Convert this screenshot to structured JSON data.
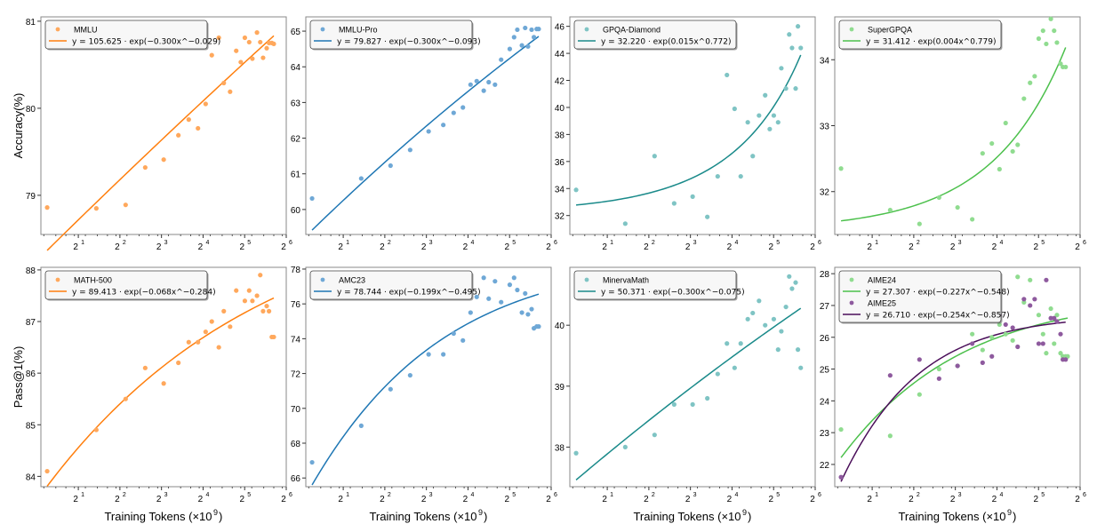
{
  "chart_data": [
    {
      "type": "scatter",
      "title": "",
      "xlabel": "",
      "ylabel": "Accuracy(%)",
      "xscale": "log2",
      "xticks": [
        "2^1",
        "2^2",
        "2^3",
        "2^4",
        "2^5",
        "2^6"
      ],
      "ylim": [
        78.55,
        81.05
      ],
      "yticks": [
        79,
        80,
        81
      ],
      "legend": "top-left",
      "series": [
        {
          "name": "MMLU",
          "color": "#ffa85c",
          "fit_color": "#ff7f0e",
          "fit_label": "y = 105.625 · exp(−0.300x^−0.029)",
          "fit": {
            "a": 105.625,
            "b": -0.3,
            "c": -0.029
          },
          "x": [
            1.19,
            2.7,
            4.4,
            6.1,
            8.3,
            10.6,
            12.6,
            14.7,
            16.7,
            18.5,
            20.8,
            22.6,
            25.1,
            27.8,
            30.0,
            32.1,
            34.5,
            36.4,
            39.3,
            41.5,
            43.5,
            46.2,
            48.0,
            50.3,
            52.0
          ],
          "y": [
            78.86,
            78.85,
            78.89,
            79.32,
            79.41,
            79.69,
            79.87,
            79.77,
            80.05,
            80.61,
            80.81,
            80.29,
            80.19,
            80.66,
            80.53,
            80.81,
            80.76,
            80.57,
            80.87,
            80.76,
            80.58,
            80.69,
            80.75,
            80.75,
            80.74
          ]
        }
      ]
    },
    {
      "type": "scatter",
      "title": "",
      "xlabel": "",
      "ylabel": "",
      "xscale": "log2",
      "xticks": [
        "2^1",
        "2^2",
        "2^3",
        "2^4",
        "2^5",
        "2^6"
      ],
      "ylim": [
        59.3,
        65.4
      ],
      "yticks": [
        60,
        61,
        62,
        63,
        64,
        65
      ],
      "legend": "top-left",
      "series": [
        {
          "name": "MMLU-Pro",
          "color": "#6fa8d6",
          "fit_color": "#1f77b4",
          "fit_label": "y = 79.827 · exp(−0.300x^−0.093)",
          "fit": {
            "a": 79.827,
            "b": -0.3,
            "c": -0.093
          },
          "x": [
            1.19,
            2.7,
            4.4,
            6.1,
            8.3,
            10.6,
            12.6,
            14.7,
            16.7,
            18.5,
            20.8,
            22.6,
            25.1,
            27.8,
            32.1,
            34.5,
            36.4,
            39.3,
            41.5,
            43.5,
            46.2,
            48.0,
            50.3,
            52.0
          ],
          "y": [
            60.31,
            60.87,
            61.23,
            61.67,
            62.19,
            62.37,
            62.71,
            62.86,
            63.5,
            63.6,
            63.33,
            63.57,
            63.5,
            64.2,
            64.5,
            64.83,
            65.04,
            64.6,
            65.09,
            64.57,
            65.04,
            64.83,
            65.06,
            65.06
          ]
        }
      ]
    },
    {
      "type": "scatter",
      "title": "",
      "xlabel": "",
      "ylabel": "",
      "xscale": "log2",
      "xticks": [
        "2^1",
        "2^2",
        "2^3",
        "2^4",
        "2^5",
        "2^6"
      ],
      "ylim": [
        30.6,
        46.7
      ],
      "yticks": [
        32,
        34,
        36,
        38,
        40,
        42,
        44,
        46
      ],
      "legend": "top-left",
      "series": [
        {
          "name": "GPQA-Diamond",
          "color": "#7fc4c4",
          "fit_color": "#1a8a8a",
          "fit_label": "y = 32.220 · exp(0.015x^0.772)",
          "fit": {
            "a": 32.22,
            "b": 0.015,
            "c": 0.772
          },
          "x": [
            1.19,
            2.7,
            4.4,
            6.1,
            8.3,
            10.6,
            12.6,
            14.7,
            16.7,
            18.5,
            20.8,
            22.6,
            25.1,
            27.8,
            30.0,
            32.1,
            34.5,
            36.4,
            39.3,
            41.5,
            43.5,
            46.2,
            48.0,
            50.3
          ],
          "y": [
            33.9,
            31.4,
            36.4,
            32.9,
            33.4,
            31.9,
            34.9,
            42.4,
            39.9,
            34.9,
            38.9,
            36.4,
            39.4,
            40.9,
            38.4,
            39.4,
            38.9,
            42.9,
            41.4,
            45.4,
            44.4,
            41.4,
            46.0,
            44.4
          ]
        }
      ]
    },
    {
      "type": "scatter",
      "title": "",
      "xlabel": "",
      "ylabel": "",
      "xscale": "log2",
      "xticks": [
        "2^1",
        "2^2",
        "2^3",
        "2^4",
        "2^5",
        "2^6"
      ],
      "ylim": [
        31.35,
        34.65
      ],
      "yticks": [
        32,
        33,
        34
      ],
      "legend": "top-left",
      "series": [
        {
          "name": "SuperGPQA",
          "color": "#90dc90",
          "fit_color": "#4cc04c",
          "fit_label": "y = 31.412 · exp(0.004x^0.779)",
          "fit": {
            "a": 31.412,
            "b": 0.004,
            "c": 0.779
          },
          "x": [
            1.19,
            2.7,
            4.4,
            6.1,
            8.3,
            10.6,
            12.6,
            14.7,
            16.7,
            18.5,
            20.8,
            22.6,
            25.1,
            27.8,
            30.0,
            32.1,
            34.5,
            36.4,
            39.3,
            41.5,
            43.5,
            46.2,
            48.0,
            50.3
          ],
          "y": [
            32.35,
            31.72,
            31.51,
            31.91,
            31.76,
            31.58,
            32.58,
            32.73,
            32.34,
            33.04,
            32.61,
            32.71,
            33.41,
            33.65,
            33.75,
            34.32,
            34.44,
            34.24,
            34.62,
            34.44,
            34.26,
            33.94,
            33.89,
            33.89
          ]
        }
      ]
    },
    {
      "type": "scatter",
      "title": "",
      "xlabel": "Training Tokens (×10⁹)",
      "ylabel": "Pass@1(%)",
      "xscale": "log2",
      "xticks": [
        "2^1",
        "2^2",
        "2^3",
        "2^4",
        "2^5",
        "2^6"
      ],
      "ylim": [
        83.8,
        88.05
      ],
      "yticks": [
        84,
        85,
        86,
        87,
        88
      ],
      "legend": "top-left",
      "series": [
        {
          "name": "MATH-500",
          "color": "#ffa85c",
          "fit_color": "#ff7f0e",
          "fit_label": "y = 89.413 · exp(−0.068x^−0.284)",
          "fit": {
            "a": 89.413,
            "b": -0.068,
            "c": -0.284
          },
          "x": [
            1.19,
            2.7,
            4.4,
            6.1,
            8.3,
            10.6,
            12.6,
            14.7,
            16.7,
            18.5,
            20.8,
            22.6,
            25.1,
            27.8,
            32.1,
            34.5,
            36.4,
            39.3,
            41.5,
            43.5,
            46.2,
            48.0,
            50.3,
            52.0
          ],
          "y": [
            84.1,
            84.9,
            85.5,
            86.1,
            85.8,
            86.2,
            86.6,
            86.6,
            86.8,
            87.0,
            86.5,
            87.2,
            86.9,
            87.6,
            87.4,
            87.6,
            87.4,
            87.5,
            87.9,
            87.2,
            87.3,
            87.2,
            86.7,
            86.7
          ]
        }
      ]
    },
    {
      "type": "scatter",
      "title": "",
      "xlabel": "Training Tokens (×10⁹)",
      "ylabel": "",
      "xscale": "log2",
      "xticks": [
        "2^1",
        "2^2",
        "2^3",
        "2^4",
        "2^5",
        "2^6"
      ],
      "ylim": [
        65.5,
        78.1
      ],
      "yticks": [
        66,
        68,
        70,
        72,
        74,
        76,
        78
      ],
      "legend": "top-left",
      "series": [
        {
          "name": "AMC23",
          "color": "#6fa8d6",
          "fit_color": "#1f77b4",
          "fit_label": "y = 78.744 · exp(−0.199x^−0.495)",
          "fit": {
            "a": 78.744,
            "b": -0.199,
            "c": -0.495
          },
          "x": [
            1.19,
            2.7,
            4.4,
            6.1,
            8.3,
            10.6,
            12.6,
            14.7,
            16.7,
            18.5,
            20.8,
            22.6,
            25.1,
            27.8,
            32.1,
            34.5,
            36.4,
            39.3,
            41.5,
            43.5,
            46.2,
            48.0,
            50.3,
            52.0
          ],
          "y": [
            66.9,
            69.0,
            71.1,
            71.9,
            73.1,
            73.1,
            74.3,
            73.9,
            75.5,
            76.4,
            77.5,
            76.3,
            77.3,
            76.1,
            77.1,
            77.5,
            76.8,
            75.5,
            76.6,
            75.4,
            75.7,
            74.6,
            74.7,
            74.7
          ]
        }
      ]
    },
    {
      "type": "scatter",
      "title": "",
      "xlabel": "Training Tokens (×10⁹)",
      "ylabel": "",
      "xscale": "log2",
      "xticks": [
        "2^1",
        "2^2",
        "2^3",
        "2^4",
        "2^5",
        "2^6"
      ],
      "ylim": [
        37.35,
        40.95
      ],
      "yticks": [
        38,
        39,
        40
      ],
      "legend": "top-left",
      "series": [
        {
          "name": "MinervaMath",
          "color": "#7fc4c4",
          "fit_color": "#1a8a8a",
          "fit_label": "y = 50.371 · exp(−0.300x^−0.075)",
          "fit": {
            "a": 50.371,
            "b": -0.3,
            "c": -0.075
          },
          "x": [
            1.19,
            2.7,
            4.4,
            6.1,
            8.3,
            10.6,
            12.6,
            14.7,
            16.7,
            18.5,
            20.8,
            22.6,
            25.1,
            27.8,
            32.1,
            34.5,
            36.4,
            39.3,
            41.5,
            43.5,
            46.2,
            48.0,
            50.3
          ],
          "y": [
            37.9,
            38.0,
            38.2,
            38.7,
            38.7,
            38.8,
            39.2,
            39.7,
            39.3,
            39.7,
            40.1,
            40.2,
            40.4,
            40.0,
            40.1,
            39.6,
            39.9,
            40.3,
            40.8,
            40.6,
            40.7,
            39.6,
            39.3
          ]
        }
      ]
    },
    {
      "type": "scatter",
      "title": "",
      "xlabel": "Training Tokens (×10⁹)",
      "ylabel": "",
      "xscale": "log2",
      "xticks": [
        "2^1",
        "2^2",
        "2^3",
        "2^4",
        "2^5",
        "2^6"
      ],
      "ylim": [
        21.3,
        28.2
      ],
      "yticks": [
        22,
        23,
        24,
        25,
        26,
        27,
        28
      ],
      "legend": "top-left",
      "series": [
        {
          "name": "AIME24",
          "color": "#90dc90",
          "fit_color": "#4cc04c",
          "fit_label": "y = 27.307 · exp(−0.227x^−0.548)",
          "fit": {
            "a": 27.307,
            "b": -0.227,
            "c": -0.548
          },
          "x": [
            1.19,
            2.7,
            4.4,
            6.1,
            8.3,
            10.6,
            12.6,
            14.7,
            16.7,
            18.5,
            20.8,
            22.6,
            25.1,
            27.8,
            32.1,
            34.5,
            36.4,
            39.3,
            41.5,
            43.5,
            46.2,
            48.0,
            50.3,
            52.0
          ],
          "y": [
            23.1,
            22.9,
            24.2,
            25.0,
            25.1,
            26.1,
            25.6,
            26.0,
            26.4,
            26.1,
            25.9,
            27.9,
            27.1,
            27.8,
            26.7,
            26.1,
            25.5,
            26.9,
            25.8,
            26.7,
            25.5,
            25.4,
            25.4,
            25.4
          ]
        },
        {
          "name": "AIME25",
          "color": "#8e5a9e",
          "fit_color": "#4b0f5a",
          "fit_label": "y = 26.710 · exp(−0.254x^−0.857)",
          "fit": {
            "a": 26.71,
            "b": -0.254,
            "c": -0.857
          },
          "x": [
            1.19,
            2.7,
            4.4,
            6.1,
            8.3,
            10.6,
            12.6,
            14.7,
            16.7,
            18.5,
            20.8,
            22.6,
            25.1,
            27.8,
            30.0,
            32.1,
            34.5,
            36.4,
            39.3,
            41.5,
            43.5,
            46.2,
            48.0,
            50.3
          ],
          "y": [
            21.6,
            24.8,
            25.3,
            24.7,
            25.1,
            25.8,
            25.2,
            25.4,
            26.7,
            26.4,
            26.3,
            25.7,
            27.2,
            27.0,
            27.2,
            25.8,
            25.8,
            27.8,
            26.6,
            26.6,
            26.5,
            26.1,
            25.3,
            25.3
          ]
        }
      ]
    }
  ],
  "labels": {
    "x_axis": "Training Tokens (×10",
    "x_axis_exp": "9",
    "x_axis_close": ")",
    "tick_base": "2"
  }
}
